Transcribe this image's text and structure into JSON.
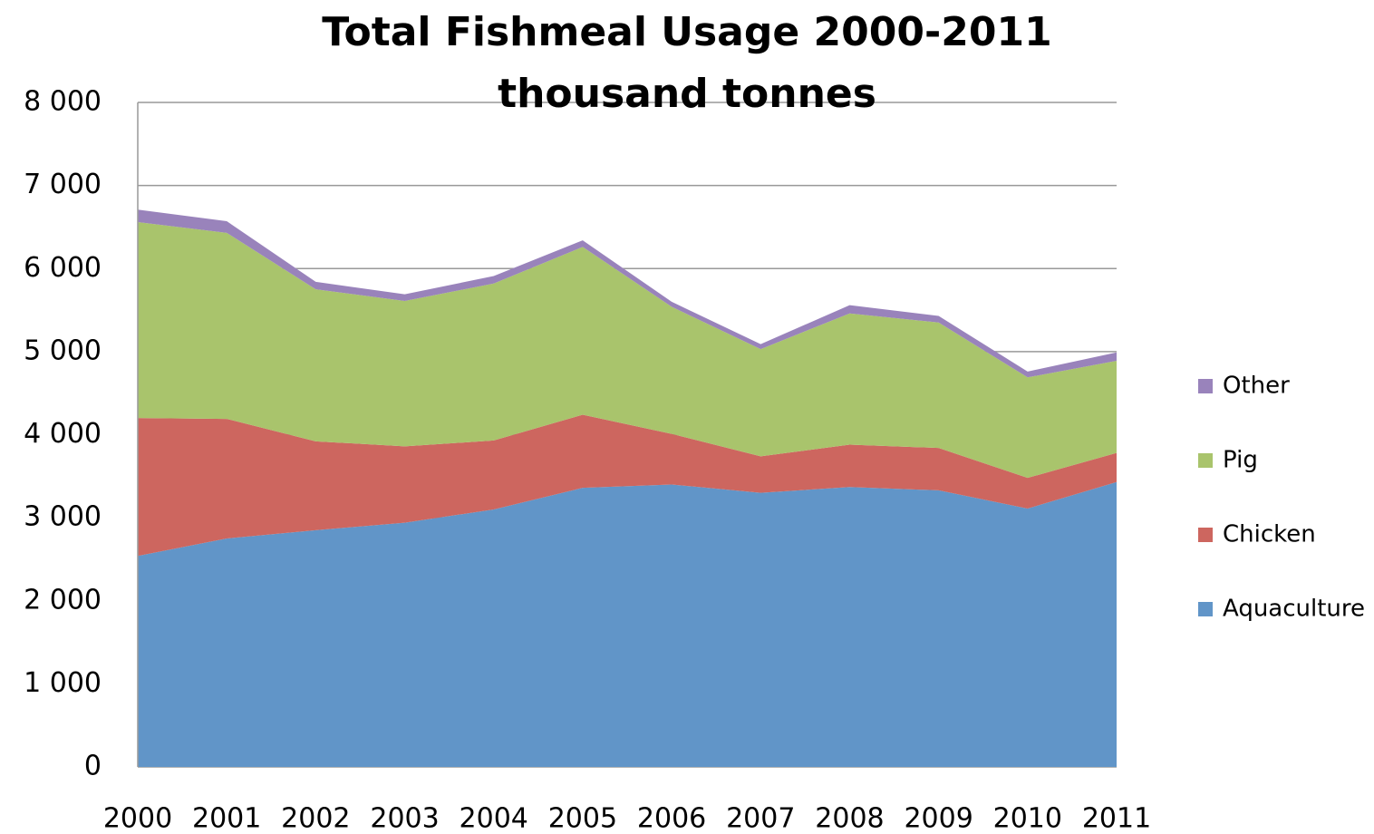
{
  "chart_data": {
    "type": "stacked_area",
    "title": "Total Fishmeal Usage 2000-2011",
    "subtitle": "thousand tonnes",
    "categories": [
      "2000",
      "2001",
      "2002",
      "2003",
      "2004",
      "2005",
      "2006",
      "2007",
      "2008",
      "2009",
      "2010",
      "2011"
    ],
    "series": [
      {
        "name": "Aquaculture",
        "color": "#6195c8",
        "values": [
          2540,
          2750,
          2850,
          2940,
          3100,
          3360,
          3400,
          3300,
          3370,
          3330,
          3110,
          3430
        ]
      },
      {
        "name": "Chicken",
        "color": "#cd665f",
        "values": [
          1660,
          1440,
          1070,
          920,
          830,
          880,
          610,
          440,
          510,
          510,
          370,
          350
        ]
      },
      {
        "name": "Pig",
        "color": "#a9c46c",
        "values": [
          2360,
          2240,
          1830,
          1750,
          1890,
          2020,
          1530,
          1290,
          1580,
          1510,
          1210,
          1110
        ]
      },
      {
        "name": "Other",
        "color": "#9983bb",
        "values": [
          150,
          140,
          90,
          80,
          90,
          80,
          60,
          60,
          100,
          80,
          70,
          100
        ]
      }
    ],
    "ylim": [
      0,
      8000
    ],
    "yticks": [
      0,
      {
        "value": 1000,
        "label": "1 000"
      },
      {
        "value": 2000,
        "label": "2 000"
      },
      {
        "value": 3000,
        "label": "3 000"
      },
      {
        "value": 4000,
        "label": "4 000"
      },
      {
        "value": 5000,
        "label": "5 000"
      },
      {
        "value": 6000,
        "label": "6 000"
      },
      {
        "value": 7000,
        "label": "7 000"
      },
      {
        "value": 8000,
        "label": "8 000"
      }
    ],
    "grid": true,
    "legend": "right"
  }
}
